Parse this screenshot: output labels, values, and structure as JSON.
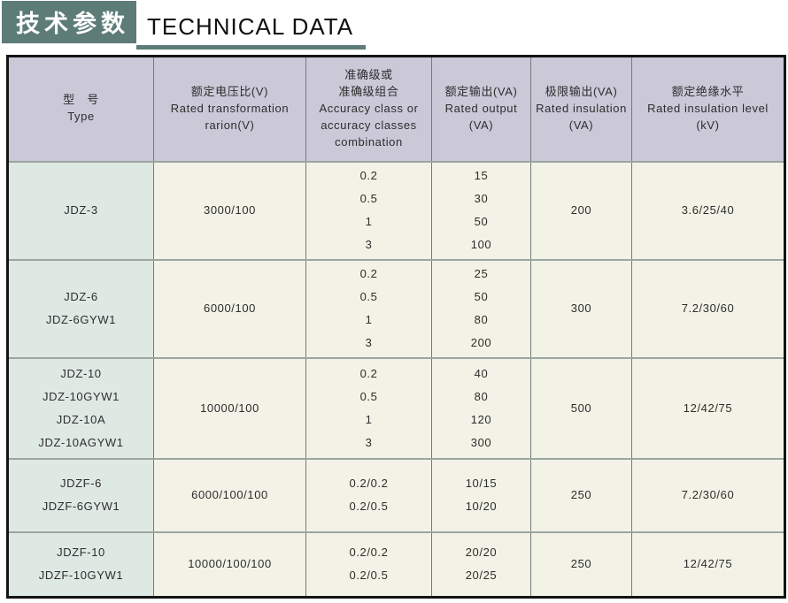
{
  "title": {
    "zh": "技术参数",
    "en": "TECHNICAL DATA"
  },
  "colors": {
    "accent": "#5d7c77",
    "header_bg": "#cbc8d8",
    "type_col_bg": "#dfe9e4",
    "cell_bg": "#f2f2e6"
  },
  "table": {
    "headers": [
      {
        "lines": [
          "型　号",
          "Type"
        ]
      },
      {
        "lines": [
          "额定电压比(V)",
          "Rated transformation",
          "rarion(V)"
        ]
      },
      {
        "lines": [
          "准确级或",
          "准确级组合",
          "Accuracy class or",
          "accuracy classes",
          "combination"
        ]
      },
      {
        "lines": [
          "额定输出(VA)",
          "Rated output",
          "(VA)"
        ]
      },
      {
        "lines": [
          "极限输出(VA)",
          "Rated insulation",
          "(VA)"
        ]
      },
      {
        "lines": [
          "额定绝缘水平",
          "Rated insulation level",
          "(kV)"
        ]
      }
    ],
    "rows": [
      {
        "types": [
          "JDZ-3"
        ],
        "ratio": "3000/100",
        "accuracy": [
          "0.2",
          "0.5",
          "1",
          "3"
        ],
        "output": [
          "15",
          "30",
          "50",
          "100"
        ],
        "limit": "200",
        "insulation": "3.6/25/40"
      },
      {
        "types": [
          "JDZ-6",
          "JDZ-6GYW1"
        ],
        "ratio": "6000/100",
        "accuracy": [
          "0.2",
          "0.5",
          "1",
          "3"
        ],
        "output": [
          "25",
          "50",
          "80",
          "200"
        ],
        "limit": "300",
        "insulation": "7.2/30/60"
      },
      {
        "types": [
          "JDZ-10",
          "JDZ-10GYW1",
          "JDZ-10A",
          "JDZ-10AGYW1"
        ],
        "ratio": "10000/100",
        "accuracy": [
          "0.2",
          "0.5",
          "1",
          "3"
        ],
        "output": [
          "40",
          "80",
          "120",
          "300"
        ],
        "limit": "500",
        "insulation": "12/42/75"
      },
      {
        "types": [
          "JDZF-6",
          "JDZF-6GYW1"
        ],
        "ratio": "6000/100/100",
        "accuracy": [
          "0.2/0.2",
          "0.2/0.5"
        ],
        "output": [
          "10/15",
          "10/20"
        ],
        "limit": "250",
        "insulation": "7.2/30/60"
      },
      {
        "types": [
          "JDZF-10",
          "JDZF-10GYW1"
        ],
        "ratio": "10000/100/100",
        "accuracy": [
          "0.2/0.2",
          "0.2/0.5"
        ],
        "output": [
          "20/20",
          "20/25"
        ],
        "limit": "250",
        "insulation": "12/42/75"
      }
    ]
  }
}
